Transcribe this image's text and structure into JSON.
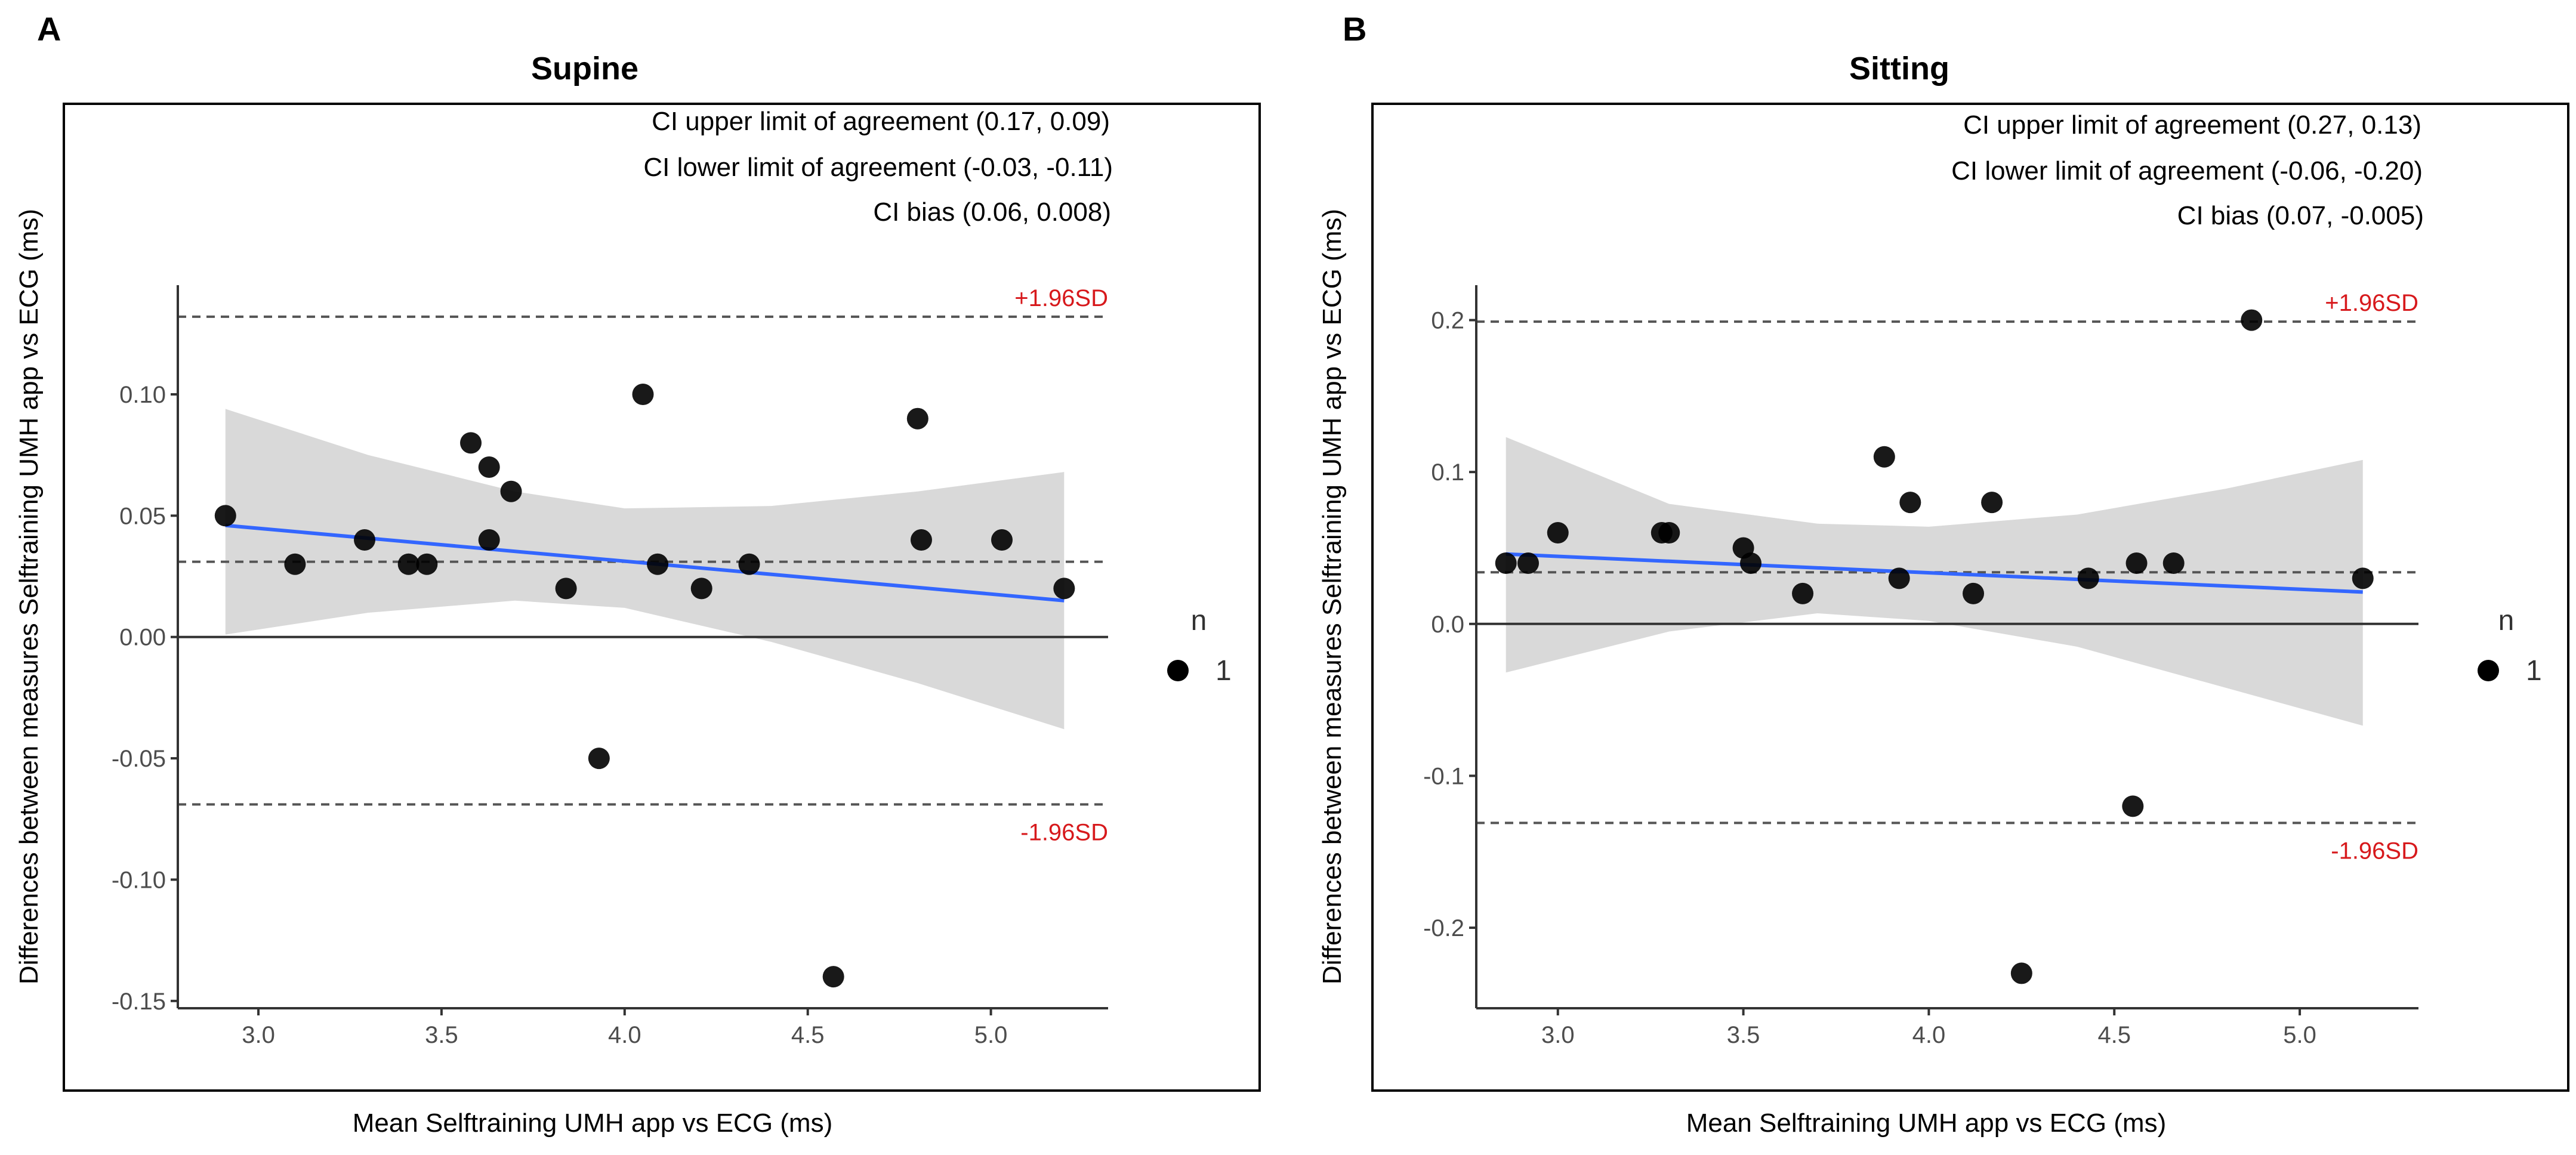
{
  "figure": {
    "ylabel": "Differences between measures Selftraining UMH app vs ECG (ms)",
    "xlabel": "Mean Selftraining UMH app vs ECG (ms)",
    "legend_title": "n",
    "legend_value": "1",
    "upper_label": "+1.96SD",
    "lower_label": "-1.96SD"
  },
  "chart_data": [
    {
      "type": "scatter",
      "panel_label": "A",
      "title": "Supine",
      "xlabel": "Mean Selftraining UMH app vs ECG (ms)",
      "ylabel": "Differences between measures Selftraining UMH app vs ECG (ms)",
      "xlim": [
        2.78,
        5.32
      ],
      "ylim": [
        -0.153,
        0.145
      ],
      "xticks": [
        3.0,
        3.5,
        4.0,
        4.5,
        5.0
      ],
      "xtick_labels": [
        "3.0",
        "3.5",
        "4.0",
        "4.5",
        "5.0"
      ],
      "yticks": [
        0.1,
        0.05,
        0.0,
        -0.05,
        -0.1,
        -0.15
      ],
      "ytick_labels": [
        "0.10",
        "0.05",
        "0.00",
        "-0.05",
        "-0.10",
        "-0.15"
      ],
      "annotations": [
        "CI upper limit of agreement  (0.17, 0.09)",
        "CI lower limit of agreement  (-0.03, -0.11)",
        "CI bias (0.06, 0.008)"
      ],
      "upper_loa": 0.132,
      "lower_loa": -0.069,
      "bias": 0.031,
      "regression": {
        "x": [
          2.91,
          5.2
        ],
        "y": [
          0.046,
          0.015
        ]
      },
      "band_upper": [
        [
          2.91,
          0.094
        ],
        [
          3.3,
          0.075
        ],
        [
          3.7,
          0.06
        ],
        [
          4.0,
          0.053
        ],
        [
          4.4,
          0.054
        ],
        [
          4.8,
          0.06
        ],
        [
          5.2,
          0.068
        ]
      ],
      "band_lower": [
        [
          2.91,
          0.001
        ],
        [
          3.3,
          0.01
        ],
        [
          3.7,
          0.015
        ],
        [
          4.0,
          0.012
        ],
        [
          4.4,
          -0.002
        ],
        [
          4.8,
          -0.019
        ],
        [
          5.2,
          -0.038
        ]
      ],
      "points": [
        {
          "x": 2.91,
          "y": 0.05
        },
        {
          "x": 3.1,
          "y": 0.03
        },
        {
          "x": 3.29,
          "y": 0.04
        },
        {
          "x": 3.41,
          "y": 0.03
        },
        {
          "x": 3.46,
          "y": 0.03
        },
        {
          "x": 3.58,
          "y": 0.08
        },
        {
          "x": 3.63,
          "y": 0.07
        },
        {
          "x": 3.63,
          "y": 0.04
        },
        {
          "x": 3.69,
          "y": 0.06
        },
        {
          "x": 3.84,
          "y": 0.02
        },
        {
          "x": 3.93,
          "y": -0.05
        },
        {
          "x": 4.05,
          "y": 0.1
        },
        {
          "x": 4.09,
          "y": 0.03
        },
        {
          "x": 4.21,
          "y": 0.02
        },
        {
          "x": 4.34,
          "y": 0.03
        },
        {
          "x": 4.57,
          "y": -0.14
        },
        {
          "x": 4.8,
          "y": 0.09
        },
        {
          "x": 4.81,
          "y": 0.04
        },
        {
          "x": 5.03,
          "y": 0.04
        },
        {
          "x": 5.2,
          "y": 0.02
        }
      ]
    },
    {
      "type": "scatter",
      "panel_label": "B",
      "title": "Sitting",
      "xlabel": "Mean Selftraining UMH app vs ECG (ms)",
      "ylabel": "Differences between measures Selftraining UMH app vs ECG (ms)",
      "xlim": [
        2.78,
        5.32
      ],
      "ylim": [
        -0.253,
        0.223
      ],
      "xticks": [
        3.0,
        3.5,
        4.0,
        4.5,
        5.0
      ],
      "xtick_labels": [
        "3.0",
        "3.5",
        "4.0",
        "4.5",
        "5.0"
      ],
      "yticks": [
        0.2,
        0.1,
        0.0,
        -0.1,
        -0.2
      ],
      "ytick_labels": [
        "0.2",
        "0.1",
        "0.0",
        "-0.1",
        "-0.2"
      ],
      "annotations": [
        "CI upper limit of agreement  (0.27, 0.13)",
        "CI lower limit of agreement  (-0.06, -0.20)",
        "CI bias (0.07, -0.005)"
      ],
      "upper_loa": 0.199,
      "lower_loa": -0.131,
      "bias": 0.034,
      "regression": {
        "x": [
          2.86,
          5.17
        ],
        "y": [
          0.046,
          0.021
        ]
      },
      "band_upper": [
        [
          2.86,
          0.123
        ],
        [
          3.3,
          0.079
        ],
        [
          3.7,
          0.066
        ],
        [
          4.0,
          0.064
        ],
        [
          4.4,
          0.072
        ],
        [
          4.8,
          0.089
        ],
        [
          5.17,
          0.108
        ]
      ],
      "band_lower": [
        [
          2.86,
          -0.032
        ],
        [
          3.3,
          -0.005
        ],
        [
          3.7,
          0.007
        ],
        [
          4.0,
          0.002
        ],
        [
          4.4,
          -0.015
        ],
        [
          4.8,
          -0.042
        ],
        [
          5.17,
          -0.067
        ]
      ],
      "points": [
        {
          "x": 2.86,
          "y": 0.04
        },
        {
          "x": 2.92,
          "y": 0.04
        },
        {
          "x": 3.0,
          "y": 0.06
        },
        {
          "x": 3.28,
          "y": 0.06
        },
        {
          "x": 3.3,
          "y": 0.06
        },
        {
          "x": 3.5,
          "y": 0.05
        },
        {
          "x": 3.52,
          "y": 0.04
        },
        {
          "x": 3.66,
          "y": 0.02
        },
        {
          "x": 3.88,
          "y": 0.11
        },
        {
          "x": 3.92,
          "y": 0.03
        },
        {
          "x": 3.95,
          "y": 0.08
        },
        {
          "x": 4.12,
          "y": 0.02
        },
        {
          "x": 4.17,
          "y": 0.08
        },
        {
          "x": 4.25,
          "y": -0.23
        },
        {
          "x": 4.43,
          "y": 0.03
        },
        {
          "x": 4.55,
          "y": -0.12
        },
        {
          "x": 4.56,
          "y": 0.04
        },
        {
          "x": 4.66,
          "y": 0.04
        },
        {
          "x": 4.87,
          "y": 0.2
        },
        {
          "x": 5.17,
          "y": 0.03
        }
      ]
    }
  ]
}
